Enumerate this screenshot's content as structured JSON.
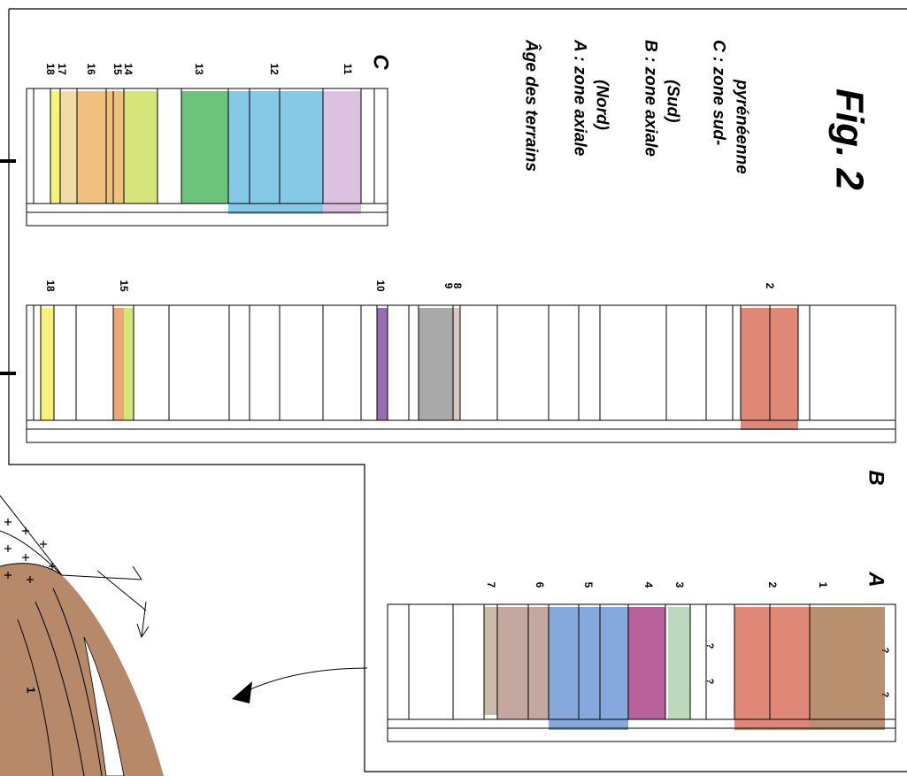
{
  "columns": {
    "C": {
      "label": "C",
      "numbers": [
        "18",
        "17",
        "16",
        "15",
        "14",
        "13",
        "12",
        "11"
      ]
    },
    "B": {
      "label": "B",
      "numbers": [
        "18",
        "15",
        "10",
        "9",
        "8",
        "2"
      ]
    },
    "A": {
      "label": "A",
      "numbers": [
        "7",
        "6",
        "5",
        "4",
        "3",
        "2",
        "1"
      ]
    }
  },
  "legend": {
    "title": "Âge des terrains",
    "items": [
      [
        "A : zone axiale",
        "(Nord)"
      ],
      [
        "B : zone axiale",
        "(Sud)"
      ],
      [
        "C : zone sud-",
        "pyrénéenne"
      ]
    ]
  },
  "figure_label": "Fig. 2",
  "section_label": "1",
  "unknown_mark": "?"
}
